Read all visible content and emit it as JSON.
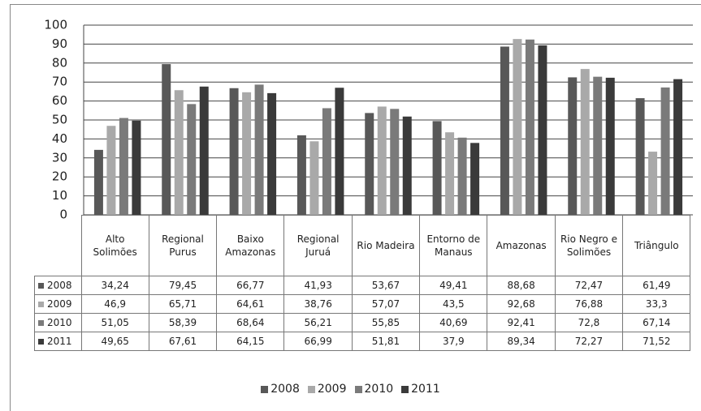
{
  "chart_data": {
    "type": "bar",
    "categories": [
      "Alto Solimões",
      "Regional Purus",
      "Baixo Amazonas",
      "Regional Juruá",
      "Rio Madeira",
      "Entorno de Manaus",
      "Amazonas",
      "Rio Negro e Solimões",
      "Triângulo"
    ],
    "series": [
      {
        "name": "2008",
        "color": "#585858",
        "values": [
          34.24,
          79.45,
          66.77,
          41.93,
          53.67,
          49.41,
          88.68,
          72.47,
          61.49
        ],
        "value_labels": [
          "34,24",
          "79,45",
          "66,77",
          "41,93",
          "53,67",
          "49,41",
          "88,68",
          "72,47",
          "61,49"
        ]
      },
      {
        "name": "2009",
        "color": "#a9a9a9",
        "values": [
          46.9,
          65.71,
          64.61,
          38.76,
          57.07,
          43.5,
          92.68,
          76.88,
          33.3
        ],
        "value_labels": [
          "46,9",
          "65,71",
          "64,61",
          "38,76",
          "57,07",
          "43,5",
          "92,68",
          "76,88",
          "33,3"
        ]
      },
      {
        "name": "2010",
        "color": "#7a7a7a",
        "values": [
          51.05,
          58.39,
          68.64,
          56.21,
          55.85,
          40.69,
          92.41,
          72.8,
          67.14
        ],
        "value_labels": [
          "51,05",
          "58,39",
          "68,64",
          "56,21",
          "55,85",
          "40,69",
          "92,41",
          "72,8",
          "67,14"
        ]
      },
      {
        "name": "2011",
        "color": "#3a3a3a",
        "values": [
          49.65,
          67.61,
          64.15,
          66.99,
          51.81,
          37.9,
          89.34,
          72.27,
          71.52
        ],
        "value_labels": [
          "49,65",
          "67,61",
          "64,15",
          "66,99",
          "51,81",
          "37,9",
          "89,34",
          "72,27",
          "71,52"
        ]
      }
    ],
    "ylim": [
      0,
      100
    ],
    "yticks": [
      0,
      10,
      20,
      30,
      40,
      50,
      60,
      70,
      80,
      90,
      100
    ],
    "grid": true,
    "legend": "bottom"
  }
}
